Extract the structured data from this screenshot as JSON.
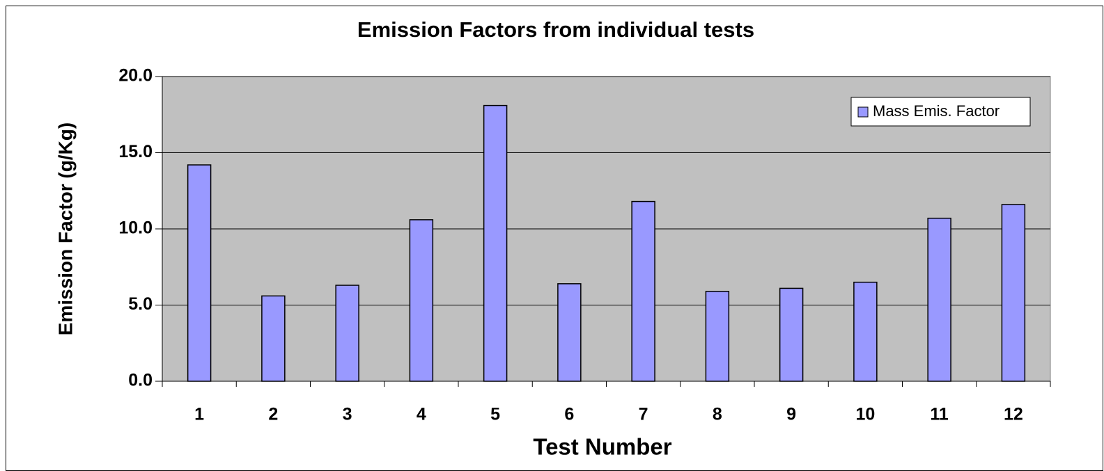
{
  "chart_data": {
    "type": "bar",
    "title": "Emission Factors from individual tests",
    "x_label": "Test Number",
    "y_label": "Emission Factor (g/Kg)",
    "categories": [
      "1",
      "2",
      "3",
      "4",
      "5",
      "6",
      "7",
      "8",
      "9",
      "10",
      "11",
      "12"
    ],
    "series": [
      {
        "name": "Mass Emis. Factor",
        "color": "#9999ff",
        "values": [
          14.2,
          5.6,
          6.3,
          10.6,
          18.1,
          6.4,
          11.8,
          5.9,
          6.1,
          6.5,
          10.7,
          11.6
        ]
      }
    ],
    "ylim": [
      0,
      20
    ],
    "yticks": [
      {
        "value": 0,
        "label": "0.0"
      },
      {
        "value": 5,
        "label": "5.0"
      },
      {
        "value": 10,
        "label": "10.0"
      },
      {
        "value": 15,
        "label": "15.0"
      },
      {
        "value": 20,
        "label": "20.0"
      }
    ],
    "grid": true,
    "legend": "upper right",
    "plot_background": "#c0c0c0"
  }
}
